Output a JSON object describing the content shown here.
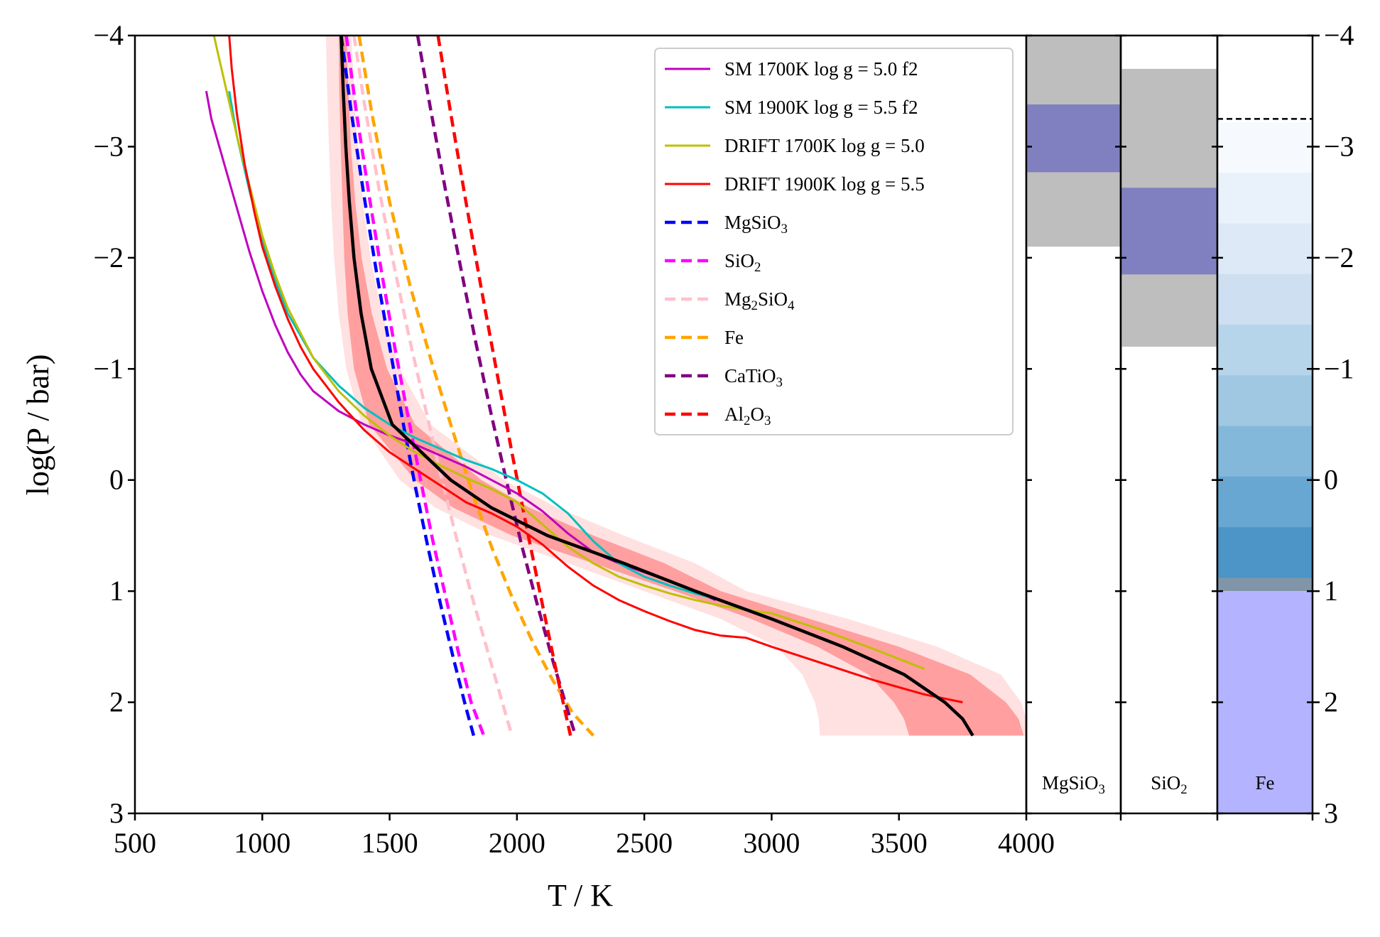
{
  "chart_data": {
    "type": "line",
    "xlabel": "T / K",
    "ylabel": "log(P / bar)",
    "xlim": [
      500,
      4000
    ],
    "ylim": [
      -4,
      3
    ],
    "y_inverted": true,
    "x_ticks": [
      "500",
      "1000",
      "1500",
      "2000",
      "2500",
      "3000",
      "3500",
      "4000"
    ],
    "y_ticks": [
      "−4",
      "−3",
      "−2",
      "−1",
      "0",
      "1",
      "2",
      "3"
    ],
    "y_tick_values": [
      -4,
      -3,
      -2,
      -1,
      0,
      1,
      2,
      3
    ],
    "grid": false,
    "legend_position": "top-right",
    "retrieved_profile": {
      "median_color": "#000000",
      "band_1sigma_color": "#ff9f9f",
      "band_2sigma_color": "#ffe1e1",
      "p_values": [
        -4.0,
        -3.5,
        -3.0,
        -2.5,
        -2.0,
        -1.5,
        -1.0,
        -0.5,
        0.0,
        0.25,
        0.5,
        0.75,
        1.0,
        1.25,
        1.5,
        1.75,
        2.0,
        2.15,
        2.3
      ],
      "median_T": [
        1310,
        1318,
        1328,
        1342,
        1360,
        1388,
        1428,
        1510,
        1740,
        1900,
        2120,
        2420,
        2700,
        3000,
        3280,
        3520,
        3680,
        3750,
        3790
      ],
      "one_sigma_low_T": [
        1300,
        1302,
        1308,
        1315,
        1322,
        1335,
        1360,
        1420,
        1600,
        1750,
        1980,
        2300,
        2620,
        2920,
        3180,
        3380,
        3480,
        3520,
        3540
      ],
      "one_sigma_high_T": [
        1330,
        1338,
        1348,
        1365,
        1390,
        1430,
        1490,
        1600,
        1860,
        2050,
        2300,
        2580,
        2800,
        3150,
        3500,
        3780,
        3920,
        3970,
        3990
      ],
      "two_sigma_low_T": [
        1250,
        1255,
        1262,
        1270,
        1282,
        1300,
        1330,
        1390,
        1540,
        1680,
        1900,
        2200,
        2500,
        2800,
        3020,
        3120,
        3170,
        3185,
        3190
      ],
      "two_sigma_high_T": [
        1350,
        1360,
        1375,
        1395,
        1425,
        1470,
        1540,
        1660,
        1950,
        2160,
        2420,
        2700,
        2900,
        3300,
        3650,
        3900,
        3980,
        4000,
        4000
      ]
    },
    "series": [
      {
        "name": "SM 1700K log g = 5.0 f2",
        "color": "#bf00bf",
        "dash": false,
        "T": [
          780,
          800,
          850,
          900,
          950,
          1000,
          1050,
          1100,
          1150,
          1200,
          1300,
          1400,
          1500,
          1600,
          1700,
          1800,
          1900,
          2000,
          2100,
          2200,
          2300,
          2400,
          2550,
          2650,
          2780
        ],
        "P": [
          -3.5,
          -3.25,
          -2.85,
          -2.45,
          -2.05,
          -1.7,
          -1.4,
          -1.15,
          -0.95,
          -0.8,
          -0.62,
          -0.5,
          -0.4,
          -0.32,
          -0.22,
          -0.12,
          0.0,
          0.12,
          0.28,
          0.48,
          0.65,
          0.75,
          0.87,
          0.95,
          1.08
        ]
      },
      {
        "name": "SM 1900K log g = 5.5 f2",
        "color": "#00bfbf",
        "dash": false,
        "T": [
          870,
          900,
          950,
          1000,
          1050,
          1100,
          1200,
          1300,
          1400,
          1500,
          1600,
          1700,
          1800,
          1900,
          2000,
          2100,
          2200,
          2300,
          2400,
          2500,
          2600,
          2700,
          2800,
          2950
        ],
        "P": [
          -3.5,
          -3.1,
          -2.6,
          -2.15,
          -1.8,
          -1.5,
          -1.1,
          -0.85,
          -0.65,
          -0.5,
          -0.38,
          -0.28,
          -0.18,
          -0.1,
          0.0,
          0.12,
          0.3,
          0.55,
          0.75,
          0.87,
          0.95,
          1.02,
          1.08,
          1.2
        ]
      },
      {
        "name": "DRIFT 1700K log g = 5.0",
        "color": "#bfbf00",
        "dash": false,
        "T": [
          810,
          830,
          860,
          900,
          950,
          1000,
          1050,
          1100,
          1200,
          1300,
          1400,
          1500,
          1600,
          1700,
          1800,
          1900,
          2000,
          2100,
          2200,
          2300,
          2400,
          2500,
          2600,
          2700,
          2800,
          2900,
          3000,
          3200,
          3400,
          3600
        ],
        "P": [
          -4.0,
          -3.8,
          -3.5,
          -3.1,
          -2.65,
          -2.2,
          -1.85,
          -1.55,
          -1.1,
          -0.8,
          -0.58,
          -0.4,
          -0.25,
          -0.13,
          -0.02,
          0.08,
          0.2,
          0.4,
          0.6,
          0.75,
          0.87,
          0.95,
          1.02,
          1.08,
          1.13,
          1.17,
          1.2,
          1.35,
          1.52,
          1.7
        ]
      },
      {
        "name": "DRIFT 1900K log g = 5.5",
        "color": "#ff0000",
        "dash": false,
        "T": [
          870,
          880,
          900,
          930,
          970,
          1000,
          1050,
          1100,
          1150,
          1200,
          1300,
          1400,
          1500,
          1600,
          1700,
          1800,
          1900,
          2000,
          2100,
          2200,
          2300,
          2400,
          2500,
          2600,
          2700,
          2800,
          2900,
          3000,
          3200,
          3400,
          3600,
          3750
        ],
        "P": [
          -4.0,
          -3.7,
          -3.3,
          -2.85,
          -2.4,
          -2.1,
          -1.75,
          -1.45,
          -1.2,
          -1.0,
          -0.7,
          -0.45,
          -0.25,
          -0.1,
          0.05,
          0.2,
          0.3,
          0.42,
          0.58,
          0.78,
          0.95,
          1.08,
          1.18,
          1.27,
          1.35,
          1.4,
          1.42,
          1.5,
          1.65,
          1.8,
          1.93,
          2.0
        ]
      },
      {
        "name": "MgSiO3",
        "label_base": "MgSiO",
        "label_sub": "3",
        "color": "#0000ff",
        "dash": true,
        "T": [
          1310,
          1350,
          1400,
          1450,
          1500,
          1550,
          1600,
          1650,
          1700,
          1750,
          1800,
          1830
        ],
        "P": [
          -4.0,
          -3.3,
          -2.55,
          -1.85,
          -1.2,
          -0.55,
          0.05,
          0.6,
          1.12,
          1.6,
          2.05,
          2.3
        ]
      },
      {
        "name": "SiO2",
        "label_base": "SiO",
        "label_sub": "2",
        "color": "#ff00ff",
        "dash": true,
        "T": [
          1330,
          1370,
          1420,
          1470,
          1520,
          1570,
          1620,
          1670,
          1720,
          1770,
          1820,
          1870
        ],
        "P": [
          -4.0,
          -3.3,
          -2.55,
          -1.85,
          -1.2,
          -0.6,
          -0.02,
          0.55,
          1.05,
          1.55,
          2.0,
          2.3
        ]
      },
      {
        "name": "Mg2SiO4",
        "label_parts": [
          "Mg",
          "2",
          "SiO",
          "4"
        ],
        "color": "#ffc0cb",
        "dash": true,
        "T": [
          1360,
          1400,
          1460,
          1520,
          1580,
          1640,
          1700,
          1760,
          1820,
          1880,
          1940,
          1980
        ],
        "P": [
          -4.0,
          -3.4,
          -2.6,
          -1.9,
          -1.25,
          -0.65,
          -0.05,
          0.5,
          1.02,
          1.5,
          1.98,
          2.3
        ]
      },
      {
        "name": "Fe",
        "color": "#ffa500",
        "dash": true,
        "T": [
          1380,
          1430,
          1500,
          1580,
          1660,
          1740,
          1820,
          1900,
          1980,
          2060,
          2140,
          2220,
          2300
        ],
        "P": [
          -4.0,
          -3.3,
          -2.5,
          -1.75,
          -1.1,
          -0.5,
          0.08,
          0.6,
          1.05,
          1.45,
          1.8,
          2.1,
          2.3
        ]
      },
      {
        "name": "CaTiO3",
        "label_base": "CaTiO",
        "label_sub": "3",
        "color": "#800080",
        "dash": true,
        "T": [
          1610,
          1660,
          1720,
          1780,
          1840,
          1900,
          1960,
          2020,
          2080,
          2140,
          2200,
          2230
        ],
        "P": [
          -4.0,
          -3.35,
          -2.6,
          -1.9,
          -1.22,
          -0.58,
          0.02,
          0.6,
          1.12,
          1.62,
          2.08,
          2.3
        ]
      },
      {
        "name": "Al2O3",
        "label_parts": [
          "Al",
          "2",
          "O",
          "3"
        ],
        "color": "#ff0000",
        "dash": true,
        "T": [
          1690,
          1740,
          1800,
          1860,
          1920,
          1980,
          2040,
          2100,
          2160,
          2210
        ],
        "P": [
          -4.0,
          -3.3,
          -2.5,
          -1.72,
          -0.98,
          -0.25,
          0.45,
          1.12,
          1.78,
          2.3
        ]
      }
    ],
    "cloud_panels": [
      {
        "label_base": "MgSiO",
        "label_sub": "3",
        "gray_range": [
          -4.0,
          -2.1
        ],
        "core_range": [
          -3.38,
          -2.77
        ],
        "gray_color": "#bebebe",
        "core_color": "#8080c0"
      },
      {
        "label_base": "SiO",
        "label_sub": "2",
        "gray_range": [
          -3.7,
          -1.2
        ],
        "core_range": [
          -2.63,
          -1.85
        ],
        "gray_color": "#bebebe",
        "core_color": "#8080c0"
      },
      {
        "label": "Fe",
        "dashed_level": -3.25,
        "gradient_range": [
          -3.22,
          0.88
        ],
        "gradient_colors": [
          "#f6faff",
          "#e9f1fa",
          "#dde9f6",
          "#cddff0",
          "#b7d5ea",
          "#a0c8e2",
          "#84b8da",
          "#67a7d2",
          "#4d94c7"
        ],
        "gray_strip": [
          0.88,
          1.0
        ],
        "gray_color": "#8096a8",
        "deck_top": 1.0,
        "deck_color": "#b3b3ff"
      }
    ]
  }
}
